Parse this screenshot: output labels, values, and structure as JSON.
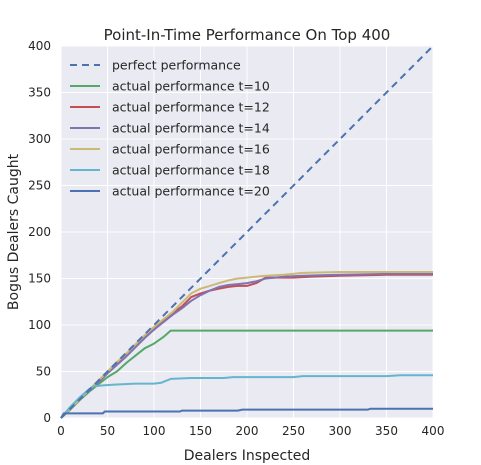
{
  "chart_data": {
    "type": "line",
    "title": "Point-In-Time Performance On Top 400",
    "xlabel": "Dealers Inspected",
    "ylabel": "Bogus Dealers Caught",
    "xlim": [
      0,
      400
    ],
    "ylim": [
      0,
      400
    ],
    "xticks": [
      0,
      50,
      100,
      150,
      200,
      250,
      300,
      350,
      400
    ],
    "yticks": [
      0,
      50,
      100,
      150,
      200,
      250,
      300,
      350,
      400
    ],
    "grid": true,
    "legend_position": "top-left",
    "series": [
      {
        "name": "perfect performance",
        "color": "#4c72b0",
        "dashed": true,
        "points": [
          [
            0,
            0
          ],
          [
            400,
            400
          ]
        ]
      },
      {
        "name": "actual performance t=10",
        "color": "#55a868",
        "dashed": false,
        "points": [
          [
            0,
            0
          ],
          [
            10,
            9
          ],
          [
            20,
            19
          ],
          [
            30,
            28
          ],
          [
            40,
            36
          ],
          [
            50,
            44
          ],
          [
            60,
            50
          ],
          [
            70,
            59
          ],
          [
            80,
            67
          ],
          [
            90,
            75
          ],
          [
            100,
            80
          ],
          [
            110,
            87
          ],
          [
            118,
            94
          ],
          [
            150,
            94
          ],
          [
            200,
            94
          ],
          [
            250,
            94
          ],
          [
            300,
            94
          ],
          [
            350,
            94
          ],
          [
            400,
            94
          ]
        ]
      },
      {
        "name": "actual performance t=12",
        "color": "#c44e52",
        "dashed": false,
        "points": [
          [
            0,
            0
          ],
          [
            10,
            10
          ],
          [
            20,
            20
          ],
          [
            30,
            30
          ],
          [
            40,
            39
          ],
          [
            50,
            49
          ],
          [
            60,
            58
          ],
          [
            70,
            67
          ],
          [
            80,
            77
          ],
          [
            90,
            87
          ],
          [
            100,
            95
          ],
          [
            110,
            104
          ],
          [
            120,
            113
          ],
          [
            130,
            120
          ],
          [
            140,
            130
          ],
          [
            150,
            134
          ],
          [
            160,
            137
          ],
          [
            170,
            139
          ],
          [
            180,
            141
          ],
          [
            190,
            142
          ],
          [
            200,
            142
          ],
          [
            210,
            145
          ],
          [
            220,
            151
          ],
          [
            230,
            151
          ],
          [
            250,
            151
          ],
          [
            270,
            152
          ],
          [
            300,
            153
          ],
          [
            350,
            154
          ],
          [
            400,
            154
          ]
        ]
      },
      {
        "name": "actual performance t=14",
        "color": "#8172b2",
        "dashed": false,
        "points": [
          [
            0,
            0
          ],
          [
            10,
            10
          ],
          [
            20,
            20
          ],
          [
            30,
            29
          ],
          [
            40,
            38
          ],
          [
            50,
            48
          ],
          [
            60,
            57
          ],
          [
            70,
            66
          ],
          [
            80,
            76
          ],
          [
            90,
            86
          ],
          [
            100,
            95
          ],
          [
            110,
            103
          ],
          [
            120,
            111
          ],
          [
            130,
            118
          ],
          [
            140,
            126
          ],
          [
            150,
            132
          ],
          [
            160,
            137
          ],
          [
            170,
            141
          ],
          [
            180,
            143
          ],
          [
            190,
            144
          ],
          [
            200,
            145
          ],
          [
            210,
            147
          ],
          [
            220,
            150
          ],
          [
            230,
            151
          ],
          [
            240,
            152
          ],
          [
            260,
            153
          ],
          [
            300,
            154
          ],
          [
            350,
            155
          ],
          [
            400,
            155
          ]
        ]
      },
      {
        "name": "actual performance t=16",
        "color": "#ccb974",
        "dashed": false,
        "points": [
          [
            0,
            0
          ],
          [
            10,
            10
          ],
          [
            20,
            20
          ],
          [
            30,
            30
          ],
          [
            40,
            40
          ],
          [
            50,
            50
          ],
          [
            60,
            60
          ],
          [
            70,
            69
          ],
          [
            80,
            79
          ],
          [
            90,
            89
          ],
          [
            100,
            98
          ],
          [
            110,
            106
          ],
          [
            120,
            114
          ],
          [
            130,
            124
          ],
          [
            140,
            134
          ],
          [
            150,
            139
          ],
          [
            160,
            142
          ],
          [
            170,
            145
          ],
          [
            180,
            148
          ],
          [
            190,
            150
          ],
          [
            200,
            151
          ],
          [
            210,
            152
          ],
          [
            220,
            153
          ],
          [
            240,
            154
          ],
          [
            260,
            156
          ],
          [
            300,
            157
          ],
          [
            400,
            157
          ]
        ]
      },
      {
        "name": "actual performance t=18",
        "color": "#64b5cd",
        "dashed": false,
        "points": [
          [
            0,
            0
          ],
          [
            10,
            12
          ],
          [
            20,
            22
          ],
          [
            30,
            31
          ],
          [
            35,
            34
          ],
          [
            45,
            35
          ],
          [
            60,
            36
          ],
          [
            80,
            37
          ],
          [
            100,
            37
          ],
          [
            108,
            38
          ],
          [
            118,
            42
          ],
          [
            140,
            43
          ],
          [
            175,
            43
          ],
          [
            185,
            44
          ],
          [
            250,
            44
          ],
          [
            260,
            45
          ],
          [
            350,
            45
          ],
          [
            365,
            46
          ],
          [
            400,
            46
          ]
        ]
      },
      {
        "name": "actual performance t=20",
        "color": "#4c72b0",
        "dashed": false,
        "points": [
          [
            0,
            0
          ],
          [
            3,
            5
          ],
          [
            45,
            5
          ],
          [
            47,
            7
          ],
          [
            128,
            7
          ],
          [
            130,
            8
          ],
          [
            190,
            8
          ],
          [
            195,
            9
          ],
          [
            330,
            9
          ],
          [
            333,
            10
          ],
          [
            400,
            10
          ]
        ]
      }
    ]
  }
}
